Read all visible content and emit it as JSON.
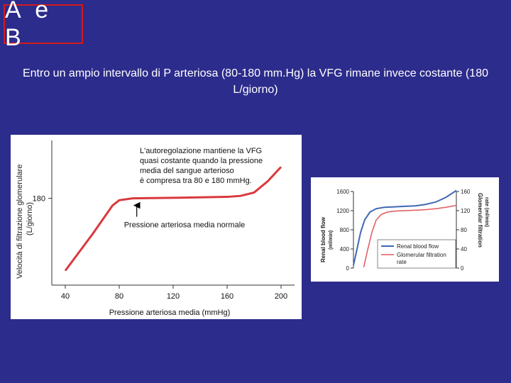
{
  "slide": {
    "title": "A e B",
    "subtitle": "Entro un ampio intervallo di P arteriosa (80-180 mm.Hg) la VFG rimane invece costante (180 L/giorno)"
  },
  "chart_data": [
    {
      "type": "line",
      "ylabel_line1": "Velocità di filtrazione glomerulare",
      "ylabel_line2": "(L/giorno)",
      "xlabel": "Pressione arteriosa media (mmHg)",
      "xticks": [
        40,
        80,
        120,
        160,
        200
      ],
      "xlim": [
        30,
        210
      ],
      "yticks": [
        180
      ],
      "ylim": [
        0,
        300
      ],
      "series": [
        {
          "color": "#d9393e",
          "x": [
            40,
            60,
            75,
            80,
            90,
            120,
            160,
            170,
            180,
            190,
            200
          ],
          "y": [
            30,
            105,
            165,
            176,
            180,
            181,
            183,
            185,
            192,
            215,
            245
          ]
        }
      ],
      "annotations": {
        "box_lines": [
          "L'autoregolazione mantiene la VFG",
          "quasi costante quando la pressione",
          "media del sangue arterioso",
          "è compresa tra 80 e 180 mmHg."
        ],
        "arrow_label": "Pressione arteriosa media normale",
        "arrow_x": 93
      }
    },
    {
      "type": "line",
      "yleft_label_line1": "Renal blood flow",
      "yleft_label_line2": "(ml/min)",
      "yright_label_line1": "Glomerular filtration",
      "yright_label_line2": "rate (ml/min)",
      "yleft_ticks": [
        0,
        400,
        800,
        1200,
        1600
      ],
      "yright_ticks": [
        0,
        40,
        80,
        120,
        160
      ],
      "ylim_left": [
        0,
        1600
      ],
      "ylim_right": [
        0,
        160
      ],
      "series": [
        {
          "name": "Renal blood flow",
          "color": "#3f68b3",
          "axis": "left",
          "x": [
            0,
            3,
            7,
            11,
            16,
            22,
            30,
            40,
            50,
            60,
            70,
            80,
            90,
            100
          ],
          "y": [
            60,
            350,
            750,
            1010,
            1170,
            1240,
            1270,
            1280,
            1290,
            1300,
            1330,
            1380,
            1480,
            1620
          ]
        },
        {
          "name": "Glomerular filtration",
          "name_line2": "rate",
          "color": "#e2585e",
          "axis": "right",
          "x": [
            10,
            14,
            18,
            22,
            27,
            33,
            40,
            50,
            60,
            70,
            80,
            90,
            100
          ],
          "y": [
            2,
            40,
            75,
            100,
            112,
            117,
            119,
            120,
            121,
            122,
            124,
            127,
            131
          ]
        }
      ]
    }
  ]
}
